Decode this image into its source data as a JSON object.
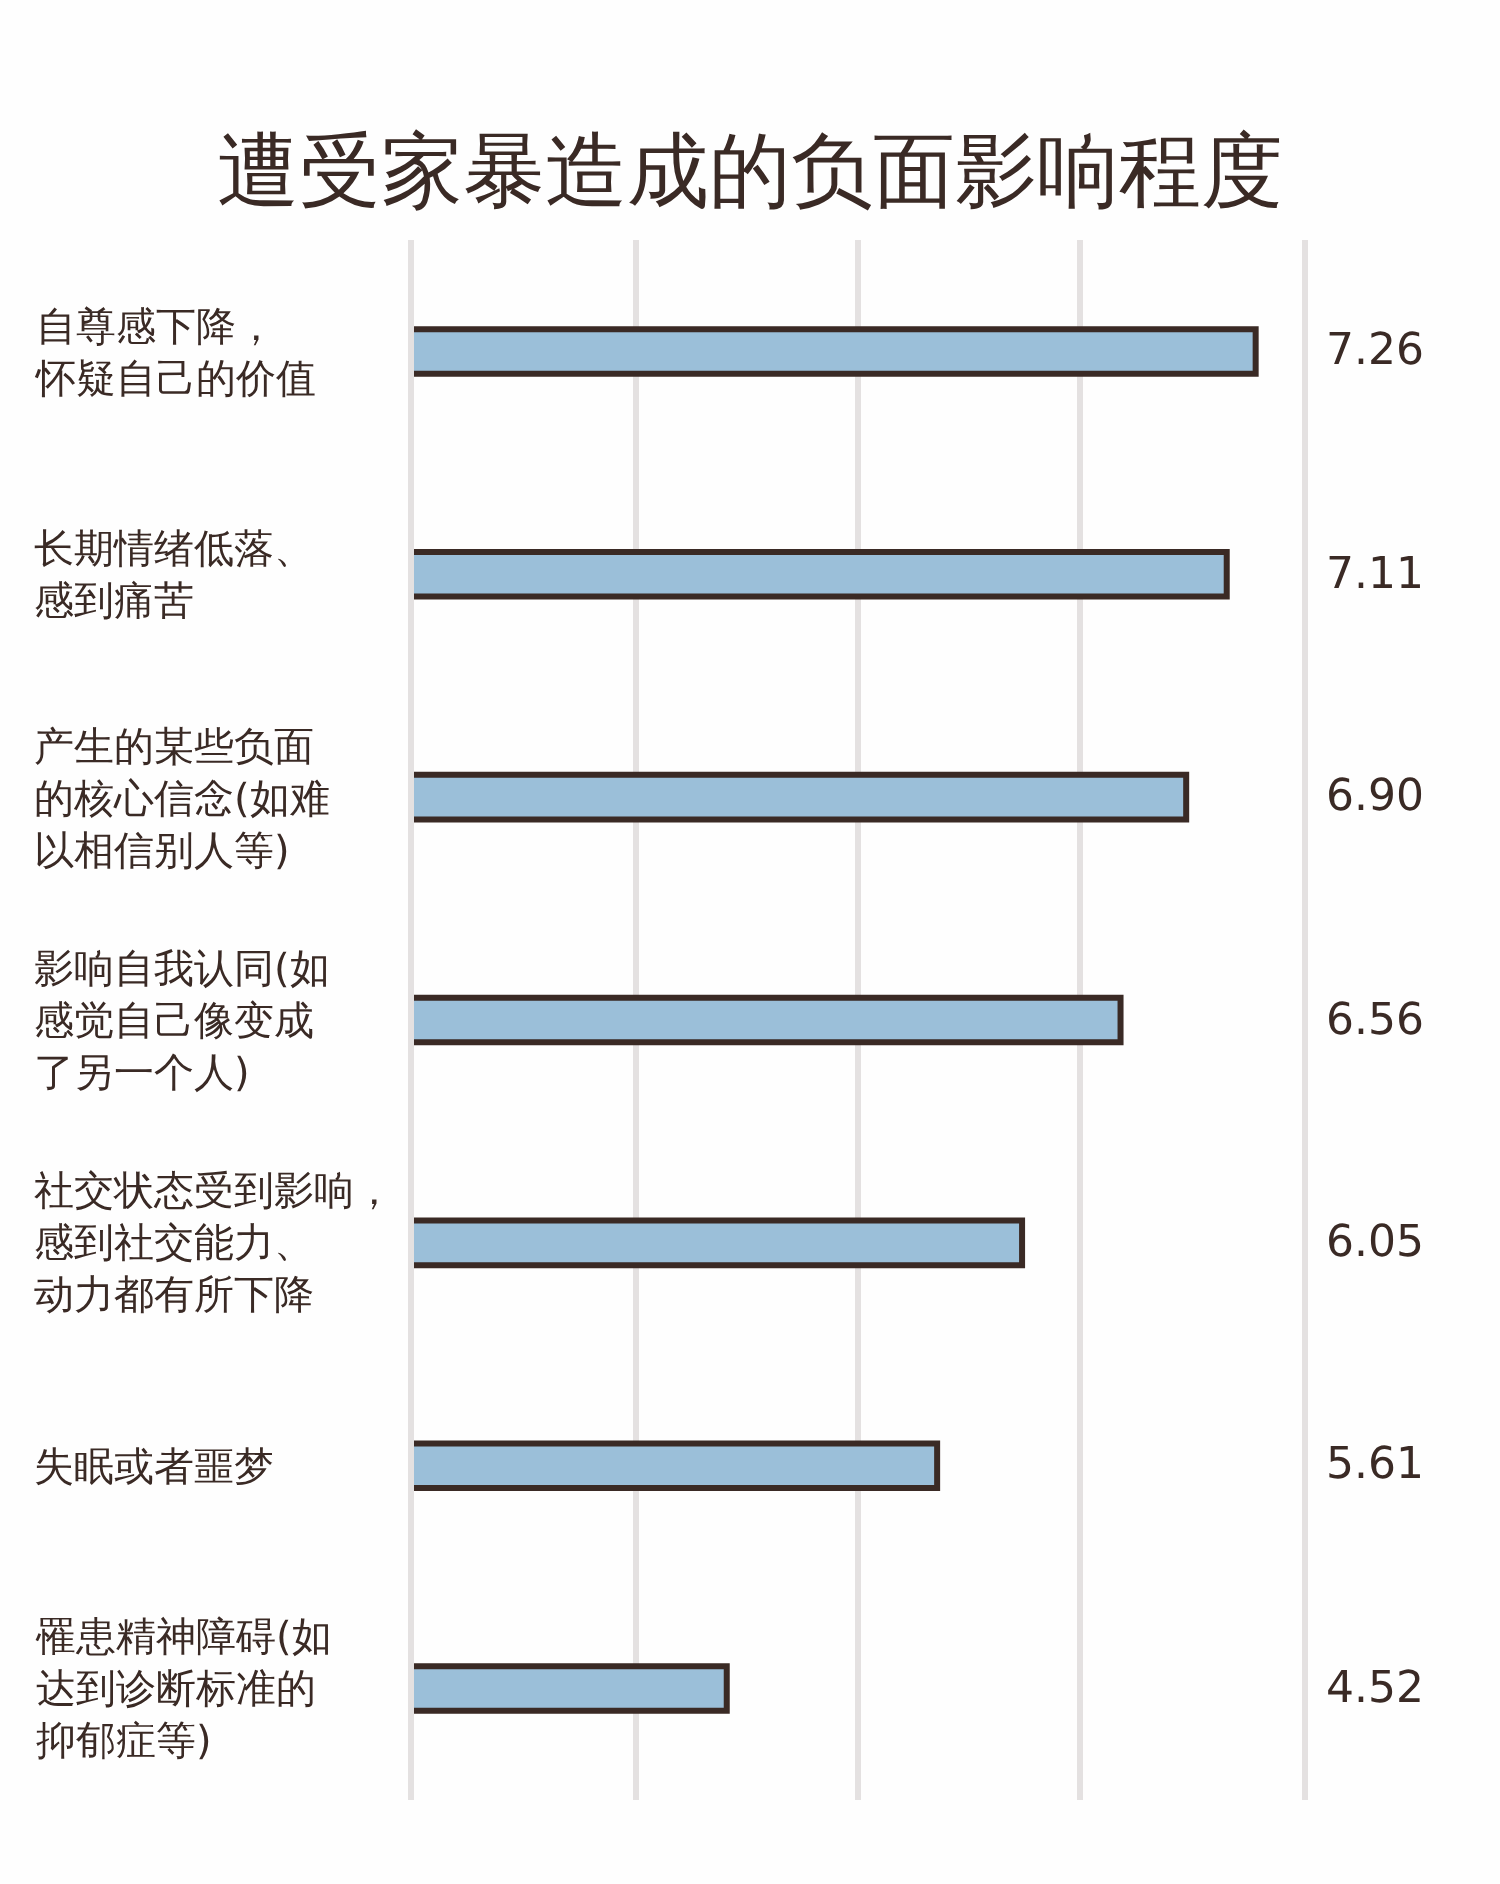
{
  "chart_data": {
    "type": "bar",
    "orientation": "horizontal",
    "title": "遭受家暴造成的负面影响程度",
    "categories": [
      "自尊感下降，怀疑自己的价值",
      "长期情绪低落、感到痛苦",
      "产生的某些负面的核心信念(如难以相信别人等)",
      "影响自我认同(如感觉自己像变成了另一个人)",
      "社交状态受到影响，感到社交能力、动力都有所下降",
      "失眠或者噩梦",
      "罹患精神障碍(如达到诊断标准的抑郁症等)"
    ],
    "values": [
      7.26,
      7.11,
      6.9,
      6.56,
      6.05,
      5.61,
      4.52
    ],
    "value_labels": [
      "7.26",
      "7.11",
      "6.90",
      "6.56",
      "6.05",
      "5.61",
      "4.52"
    ],
    "color": "#9bbfd9",
    "xlim": [
      2.9,
      7.5
    ],
    "xticks": [
      {
        "value": 4.05,
        "label": null
      },
      {
        "value": 5.2,
        "label": null
      },
      {
        "value": 6.35,
        "label": null
      }
    ],
    "grid": "x",
    "tick_labels": "y"
  }
}
